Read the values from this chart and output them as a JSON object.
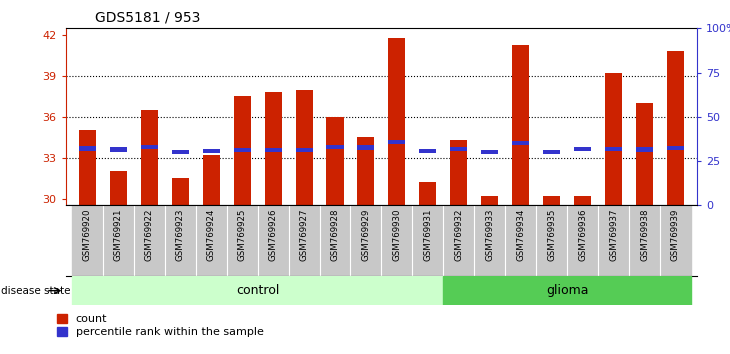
{
  "title": "GDS5181 / 953",
  "samples": [
    "GSM769920",
    "GSM769921",
    "GSM769922",
    "GSM769923",
    "GSM769924",
    "GSM769925",
    "GSM769926",
    "GSM769927",
    "GSM769928",
    "GSM769929",
    "GSM769930",
    "GSM769931",
    "GSM769932",
    "GSM769933",
    "GSM769934",
    "GSM769935",
    "GSM769936",
    "GSM769937",
    "GSM769938",
    "GSM769939"
  ],
  "count_values": [
    35.0,
    32.0,
    36.5,
    31.5,
    33.2,
    37.5,
    37.8,
    38.0,
    36.0,
    34.5,
    41.8,
    31.2,
    34.3,
    30.2,
    41.3,
    30.2,
    30.2,
    39.2,
    37.0,
    40.8
  ],
  "percentile_values": [
    32.1,
    31.5,
    32.9,
    30.3,
    30.7,
    31.2,
    31.2,
    31.2,
    33.0,
    32.7,
    35.7,
    30.6,
    31.8,
    30.2,
    35.3,
    30.2,
    31.8,
    32.0,
    31.5,
    32.5
  ],
  "ylim_left": [
    29.5,
    42.5
  ],
  "ylim_right": [
    0,
    100
  ],
  "yticks_left": [
    30,
    33,
    36,
    39,
    42
  ],
  "yticks_right": [
    0,
    25,
    50,
    75,
    100
  ],
  "bar_color": "#cc2200",
  "marker_color": "#3333cc",
  "control_color": "#ccffcc",
  "glioma_color": "#55cc55",
  "n_control": 12,
  "n_glioma": 8,
  "control_label": "control",
  "glioma_label": "glioma",
  "legend_count": "count",
  "legend_percentile": "percentile rank within the sample",
  "disease_state_label": "disease state",
  "bar_width": 0.55
}
